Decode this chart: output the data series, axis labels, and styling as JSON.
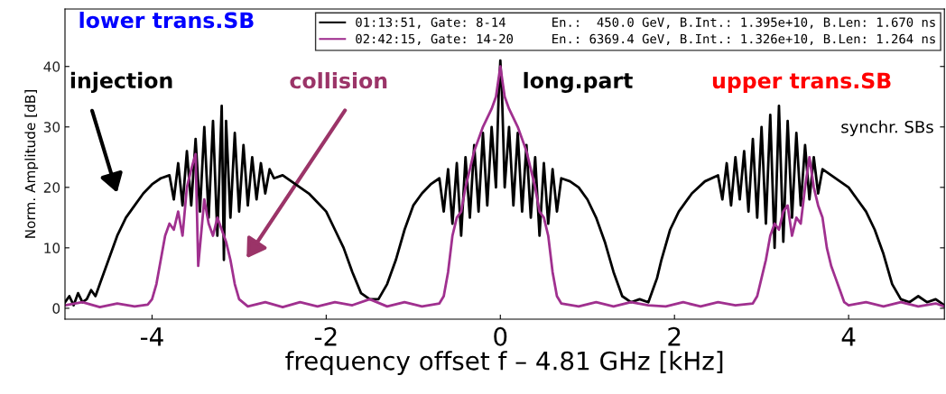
{
  "chart_data": {
    "type": "line",
    "xlabel": "frequency offset f – 4.81 GHz [kHz]",
    "ylabel": "Norm. Amplitude [dB]",
    "xlim": [
      -5,
      5.1
    ],
    "ylim": [
      -1.8,
      49.5
    ],
    "xticks": [
      -4,
      -2,
      0,
      2,
      4
    ],
    "yticks": [
      0,
      10,
      20,
      30,
      40
    ],
    "grid": false,
    "legend": "top right",
    "line_style": "solid",
    "marker": "none",
    "series": [
      {
        "name": "01:13:51, Gate: 8-14      En.:  450.0 GeV, B.Int.: 1.395e+10, B.Len: 1.670 ns",
        "color": "#000000",
        "x": [
          -5.0,
          -4.95,
          -4.9,
          -4.85,
          -4.8,
          -4.75,
          -4.7,
          -4.65,
          -4.6,
          -4.5,
          -4.4,
          -4.3,
          -4.2,
          -4.1,
          -4.0,
          -3.9,
          -3.8,
          -3.75,
          -3.7,
          -3.65,
          -3.6,
          -3.55,
          -3.5,
          -3.45,
          -3.4,
          -3.35,
          -3.3,
          -3.25,
          -3.2,
          -3.175,
          -3.15,
          -3.1,
          -3.05,
          -3.0,
          -2.95,
          -2.9,
          -2.85,
          -2.8,
          -2.75,
          -2.7,
          -2.65,
          -2.6,
          -2.5,
          -2.4,
          -2.3,
          -2.2,
          -2.1,
          -2.0,
          -1.9,
          -1.8,
          -1.7,
          -1.6,
          -1.5,
          -1.4,
          -1.3,
          -1.2,
          -1.1,
          -1.0,
          -0.9,
          -0.8,
          -0.7,
          -0.65,
          -0.6,
          -0.55,
          -0.5,
          -0.45,
          -0.4,
          -0.35,
          -0.3,
          -0.25,
          -0.2,
          -0.15,
          -0.1,
          -0.05,
          -0.02,
          0.0,
          0.02,
          0.05,
          0.1,
          0.15,
          0.2,
          0.25,
          0.3,
          0.35,
          0.4,
          0.45,
          0.5,
          0.55,
          0.6,
          0.65,
          0.7,
          0.8,
          0.9,
          1.0,
          1.1,
          1.2,
          1.3,
          1.4,
          1.5,
          1.6,
          1.7,
          1.75,
          1.8,
          1.85,
          1.95,
          2.05,
          2.2,
          2.35,
          2.5,
          2.55,
          2.6,
          2.65,
          2.7,
          2.75,
          2.8,
          2.85,
          2.9,
          2.95,
          3.0,
          3.05,
          3.1,
          3.15,
          3.2,
          3.25,
          3.3,
          3.35,
          3.4,
          3.45,
          3.5,
          3.55,
          3.6,
          3.65,
          3.7,
          3.8,
          3.9,
          4.0,
          4.1,
          4.2,
          4.3,
          4.4,
          4.5,
          4.6,
          4.7,
          4.8,
          4.9,
          5.0,
          5.1
        ],
        "values": [
          1,
          2,
          0.5,
          2.5,
          1,
          1.5,
          3,
          2,
          4,
          8,
          12,
          15,
          17,
          19,
          20.5,
          21.5,
          22,
          18,
          24,
          17,
          26,
          17,
          28,
          16,
          30,
          15,
          31,
          12,
          33.5,
          8,
          31,
          15,
          29,
          16,
          27,
          17,
          25,
          18,
          24,
          19,
          23,
          21.5,
          22,
          21,
          20,
          19,
          17.5,
          16,
          13,
          10,
          6,
          2.5,
          1.5,
          1.5,
          4,
          8,
          13,
          17,
          19,
          20.5,
          21.5,
          16,
          23,
          14,
          24,
          12,
          25,
          15,
          27,
          16,
          29,
          17,
          30,
          20,
          35,
          41,
          35,
          20,
          30,
          17,
          29,
          16,
          27,
          15,
          25,
          12,
          24,
          14,
          23,
          16,
          21.5,
          21,
          20,
          18,
          15,
          11,
          6,
          2,
          1,
          1.5,
          1,
          3,
          5,
          8,
          13,
          16,
          19,
          21,
          22,
          18,
          24,
          17,
          25,
          18,
          26,
          16,
          28,
          15,
          30,
          14,
          32,
          10,
          33.5,
          11,
          31,
          15,
          29,
          17,
          27,
          18,
          25,
          19,
          23,
          22,
          21,
          20,
          18,
          16,
          13,
          9,
          4,
          1.5,
          1,
          2,
          1,
          1.5,
          0.5
        ]
      },
      {
        "name": "02:42:15, Gate: 14-20     En.: 6369.4 GeV, B.Int.: 1.326e+10, B.Len: 1.264 ns",
        "color": "#a0308f",
        "x": [
          -5.0,
          -4.8,
          -4.6,
          -4.4,
          -4.2,
          -4.05,
          -4.0,
          -3.95,
          -3.9,
          -3.85,
          -3.8,
          -3.75,
          -3.7,
          -3.65,
          -3.6,
          -3.55,
          -3.5,
          -3.47,
          -3.4,
          -3.35,
          -3.3,
          -3.25,
          -3.2,
          -3.15,
          -3.1,
          -3.05,
          -3.0,
          -2.9,
          -2.7,
          -2.5,
          -2.3,
          -2.1,
          -1.9,
          -1.7,
          -1.5,
          -1.3,
          -1.1,
          -0.9,
          -0.7,
          -0.65,
          -0.6,
          -0.55,
          -0.5,
          -0.45,
          -0.4,
          -0.3,
          -0.2,
          -0.1,
          -0.05,
          0.0,
          0.05,
          0.1,
          0.2,
          0.3,
          0.4,
          0.45,
          0.5,
          0.55,
          0.6,
          0.65,
          0.7,
          0.9,
          1.1,
          1.3,
          1.5,
          1.7,
          1.9,
          2.1,
          2.3,
          2.5,
          2.7,
          2.9,
          2.95,
          3.0,
          3.05,
          3.1,
          3.15,
          3.2,
          3.25,
          3.3,
          3.35,
          3.4,
          3.45,
          3.5,
          3.55,
          3.6,
          3.65,
          3.7,
          3.75,
          3.8,
          3.85,
          3.9,
          3.95,
          4.0,
          4.2,
          4.4,
          4.6,
          4.8,
          5.0,
          5.1
        ],
        "values": [
          0.5,
          1,
          0.2,
          0.8,
          0.3,
          0.6,
          1.5,
          4,
          8,
          12,
          14,
          13,
          16,
          12,
          20,
          23,
          25.5,
          7,
          18,
          14,
          12,
          15,
          13,
          11,
          8,
          4,
          1.5,
          0.3,
          1,
          0.2,
          1,
          0.3,
          1,
          0.5,
          1.5,
          0.3,
          1,
          0.3,
          0.8,
          2,
          6,
          12,
          15,
          16,
          20,
          26,
          30,
          33,
          35,
          40,
          35,
          33,
          30,
          26,
          20,
          16,
          15,
          12,
          6,
          2,
          0.8,
          0.3,
          1,
          0.3,
          1,
          0.5,
          0.3,
          1,
          0.3,
          1,
          0.5,
          0.8,
          2,
          5,
          8,
          12,
          14,
          13,
          16,
          17,
          12,
          15,
          14,
          20,
          25,
          20,
          17,
          15,
          10,
          7,
          5,
          3,
          1,
          0.5,
          1,
          0.3,
          1,
          0.3,
          0.8,
          0.3
        ]
      }
    ],
    "annotations": [
      "lower trans.SB",
      "injection",
      "collision",
      "long.part",
      "upper trans.SB",
      "synchr. SBs"
    ]
  }
}
